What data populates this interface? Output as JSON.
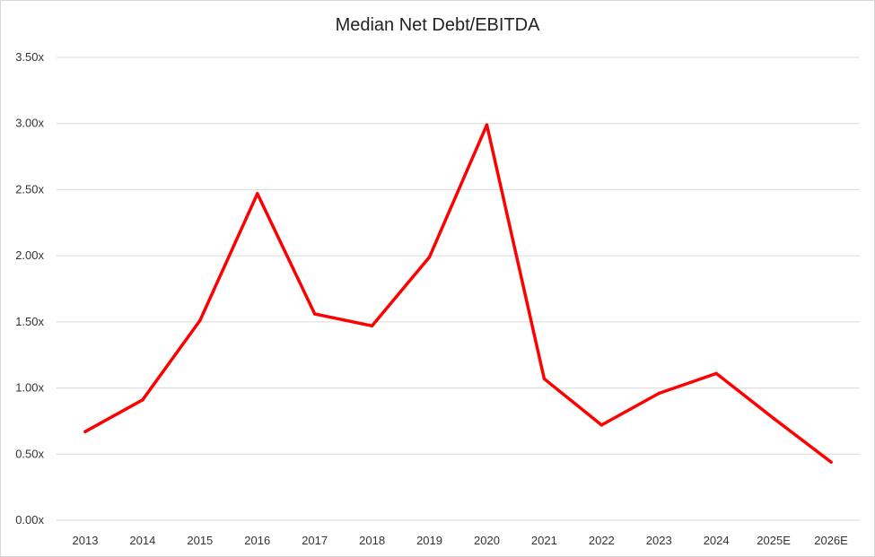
{
  "chart_data": {
    "type": "line",
    "title": "Median Net Debt/EBITDA",
    "xlabel": "",
    "ylabel": "",
    "categories": [
      "2013",
      "2014",
      "2015",
      "2016",
      "2017",
      "2018",
      "2019",
      "2020",
      "2021",
      "2022",
      "2023",
      "2024",
      "2025E",
      "2026E"
    ],
    "series": [
      {
        "values": [
          0.67,
          0.91,
          1.51,
          2.47,
          1.56,
          1.47,
          1.99,
          2.99,
          1.07,
          0.72,
          0.96,
          1.11,
          0.77,
          0.44
        ],
        "color": "#ff0000"
      }
    ],
    "ylim": [
      0,
      3.5
    ],
    "yticks": [
      "0.00x",
      "0.50x",
      "1.00x",
      "1.50x",
      "2.00x",
      "2.50x",
      "3.00x",
      "3.50x"
    ],
    "grid": true,
    "legend": "none"
  }
}
